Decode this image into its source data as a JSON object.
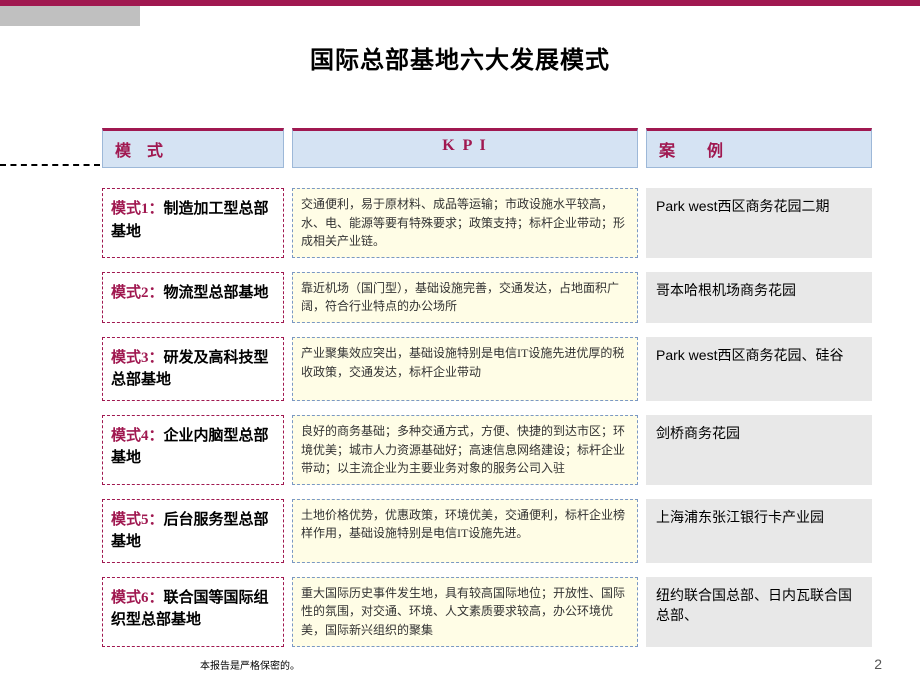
{
  "colors": {
    "accent": "#a01850",
    "header_bg": "#d5e3f3",
    "header_border": "#9db8d8",
    "mode_border": "#a01850",
    "kpi_bg": "#fffde6",
    "kpi_border": "#7a98c4",
    "example_bg": "#e8e8e8",
    "gray_block": "#c0c0c0"
  },
  "title": "国际总部基地六大发展模式",
  "headers": {
    "mode": "模 式",
    "kpi": "K P I",
    "example": "案  例"
  },
  "rows": [
    {
      "mode_num": "模式1：",
      "mode_txt": "制造加工型总部基地",
      "kpi": "交通便利，易于原材料、成品等运输；市政设施水平较高，水、电、能源等要有特殊要求；政策支持；标杆企业带动；形成相关产业链。",
      "example": "Park west西区商务花园二期"
    },
    {
      "mode_num": "模式2：",
      "mode_txt": "物流型总部基地",
      "kpi": "靠近机场（国门型），基础设施完善，交通发达，占地面积广阔，符合行业特点的办公场所",
      "example": "哥本哈根机场商务花园"
    },
    {
      "mode_num": "模式3：",
      "mode_txt": "研发及高科技型总部基地",
      "kpi": "产业聚集效应突出，基础设施特别是电信IT设施先进优厚的税收政策，交通发达，标杆企业带动",
      "example": "Park west西区商务花园、硅谷"
    },
    {
      "mode_num": "模式4：",
      "mode_txt": "企业内脑型总部基地",
      "kpi": "良好的商务基础；多种交通方式，方便、快捷的到达市区；环境优美；城市人力资源基础好；高速信息网络建设；标杆企业带动；以主流企业为主要业务对象的服务公司入驻",
      "example": "剑桥商务花园"
    },
    {
      "mode_num": "模式5：",
      "mode_txt": "后台服务型总部基地",
      "kpi": "土地价格优势，优惠政策，环境优美，交通便利，标杆企业榜样作用，基础设施特别是电信IT设施先进。",
      "example": "上海浦东张江银行卡产业园"
    },
    {
      "mode_num": "模式6：",
      "mode_txt": "联合国等国际组织型总部基地",
      "kpi": "重大国际历史事件发生地，具有较高国际地位；开放性、国际性的氛围，对交通、环境、人文素质要求较高，办公环境优美，国际新兴组织的聚集",
      "example": "纽约联合国总部、日内瓦联合国总部、"
    }
  ],
  "footer": "本报告是严格保密的。",
  "page_number": "2"
}
